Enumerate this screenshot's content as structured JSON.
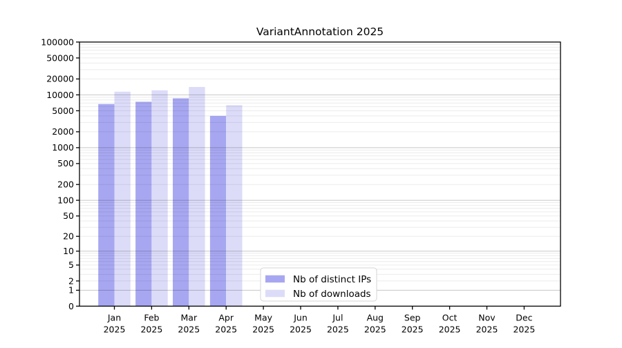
{
  "page": {
    "background": "#ffffff"
  },
  "chart_data": {
    "type": "bar",
    "title": "VariantAnnotation 2025",
    "categories": [
      "Jan",
      "Feb",
      "Mar",
      "Apr",
      "May",
      "Jun",
      "Jul",
      "Aug",
      "Sep",
      "Oct",
      "Nov",
      "Dec"
    ],
    "x_sublabel": "2025",
    "series": [
      {
        "name": "Nb of distinct IPs",
        "color": "#a7a7f1",
        "values": [
          6700,
          7400,
          8600,
          4000,
          null,
          null,
          null,
          null,
          null,
          null,
          null,
          null
        ]
      },
      {
        "name": "Nb of downloads",
        "color": "#dcdcf9",
        "values": [
          11500,
          12200,
          14100,
          6400,
          null,
          null,
          null,
          null,
          null,
          null,
          null,
          null
        ]
      }
    ],
    "y_axis": {
      "scale": "log10(value+1)",
      "ticks": [
        100000,
        50000,
        20000,
        10000,
        5000,
        2000,
        1000,
        500,
        200,
        100,
        50,
        20,
        10,
        5,
        2,
        1,
        0
      ],
      "range": [
        0,
        100000
      ]
    },
    "x_axis": {
      "year": "2025"
    },
    "legend": {
      "position": "bottom-center"
    },
    "grid": {
      "orientation": "horizontal",
      "minor_color": "#ebebeb",
      "major_color": "#c8c8c8"
    },
    "colors": {
      "axis": "#000000",
      "legend_border": "#d4d4d4",
      "legend_background": "#ffffff"
    }
  }
}
